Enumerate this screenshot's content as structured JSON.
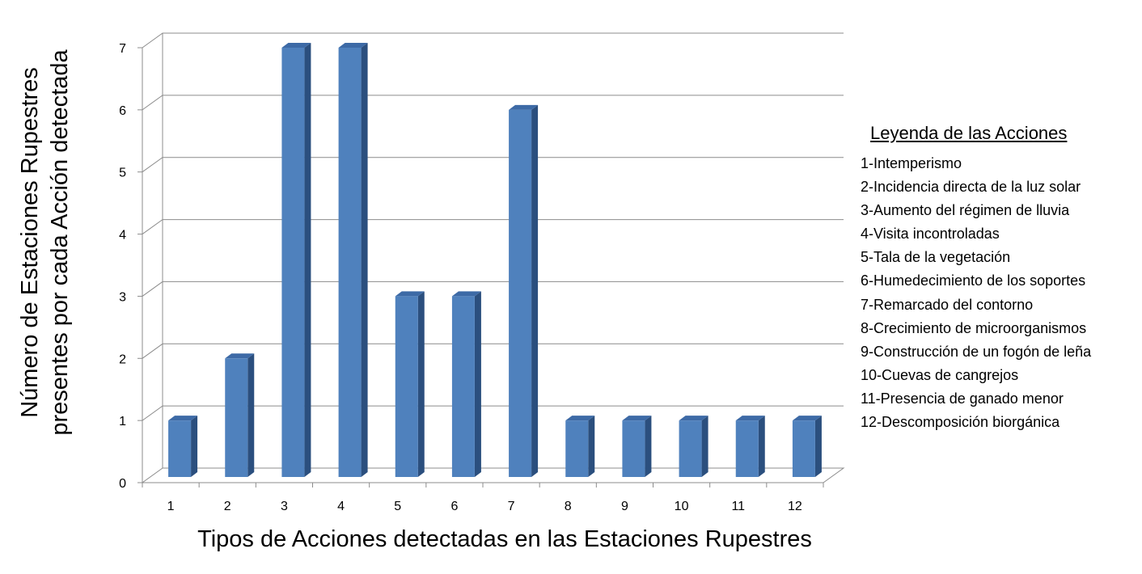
{
  "chart_data": {
    "type": "bar",
    "xlabel": "Tipos de Acciones detectadas  en las Estaciones  Rupestres",
    "ylabel_line1": "Número de Estaciones  Rupestres",
    "ylabel_line2": "presentes por cada Acción detectada",
    "categories": [
      "1",
      "2",
      "3",
      "4",
      "5",
      "6",
      "7",
      "8",
      "9",
      "10",
      "11",
      "12"
    ],
    "values": [
      1,
      2,
      7,
      7,
      3,
      3,
      6,
      1,
      1,
      1,
      1,
      1
    ],
    "ylim": [
      0,
      7
    ],
    "yticks": [
      0,
      1,
      2,
      3,
      4,
      5,
      6,
      7
    ],
    "grid": true,
    "bar_color": "#4f81bd",
    "legend_position": "right"
  },
  "legend": {
    "title": "Leyenda de las Acciones",
    "items": [
      "1-Intemperismo",
      "2-Incidencia directa de la luz solar",
      "3-Aumento del régimen de lluvia",
      "4-Visita incontroladas",
      "5-Tala de la vegetación",
      "6-Humedecimiento de los soportes",
      "7-Remarcado del contorno",
      "8-Crecimiento de microorganismos",
      "9-Construcción de un fogón de leña",
      "10-Cuevas de cangrejos",
      "11-Presencia de ganado menor",
      "12-Descomposición biorgánica"
    ]
  }
}
